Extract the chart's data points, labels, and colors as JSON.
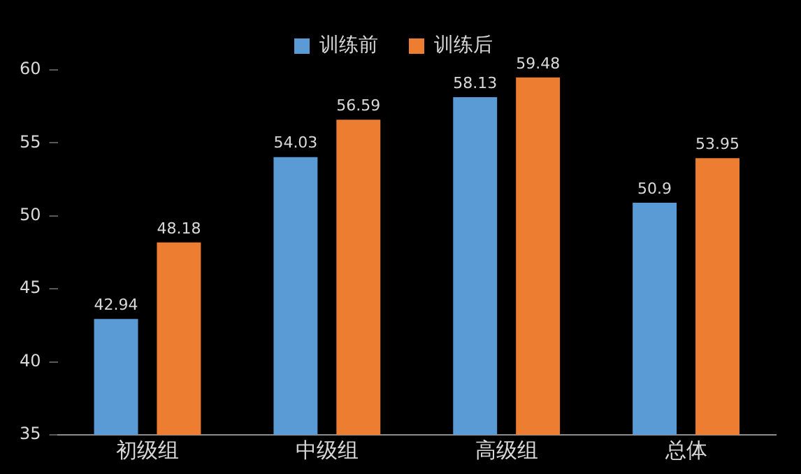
{
  "chart_data": {
    "type": "bar",
    "categories": [
      "初级组",
      "中级组",
      "高级组",
      "总体"
    ],
    "series": [
      {
        "name": "训练前",
        "color": "#5b9bd5",
        "values": [
          42.94,
          54.03,
          58.13,
          50.9
        ]
      },
      {
        "name": "训练后",
        "color": "#ed7d31",
        "values": [
          48.18,
          56.59,
          59.48,
          53.95
        ]
      }
    ],
    "ylim": [
      35,
      60
    ],
    "yticks": [
      35,
      40,
      45,
      50,
      55,
      60
    ],
    "grid": false,
    "legend": "top",
    "data_labels": true
  }
}
